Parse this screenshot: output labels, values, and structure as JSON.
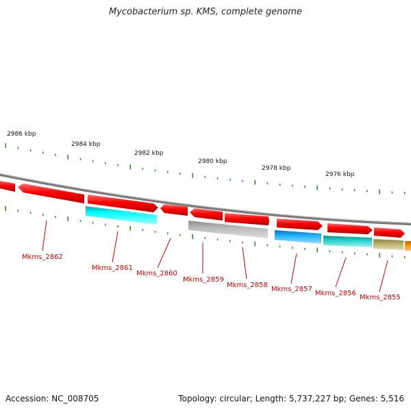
{
  "title": "Mycobacterium sp. KMS, complete genome",
  "footer": {
    "accession": "Accession: NC_008705",
    "stats": "Topology: circular; Length: 5,737,227 bp; Genes: 5,516"
  },
  "colors": {
    "gene_strand": "#ff0000",
    "backbone": "#888888",
    "tick": "#2e8b2e",
    "label": "#cc0000",
    "cyan": "#00e5ee",
    "gray": "#b4b4b4",
    "blue": "#1eaaf0",
    "teal": "#1ec8c8",
    "olive": "#b4aa64",
    "orange": "#ff8c00"
  },
  "map": {
    "scale_labels": [
      "2986 kbp",
      "2984 kbp",
      "2982 kbp",
      "2980 kbp",
      "2978 kbp",
      "2976 kbp"
    ],
    "genes": [
      {
        "name": "Mkms_2862",
        "strand": "reverse",
        "annotation": "none"
      },
      {
        "name": "Mkms_2861",
        "strand": "forward",
        "annotation": "cyan"
      },
      {
        "name": "Mkms_2860",
        "strand": "reverse",
        "annotation": "none"
      },
      {
        "name": "Mkms_2859",
        "strand": "reverse",
        "annotation": "gray"
      },
      {
        "name": "Mkms_2858",
        "strand": "forward",
        "annotation": "none"
      },
      {
        "name": "Mkms_2857",
        "strand": "forward",
        "annotation": "blue"
      },
      {
        "name": "Mkms_2856",
        "strand": "forward",
        "annotation": "teal"
      },
      {
        "name": "Mkms_2855",
        "strand": "forward",
        "annotation": "olive"
      }
    ]
  }
}
